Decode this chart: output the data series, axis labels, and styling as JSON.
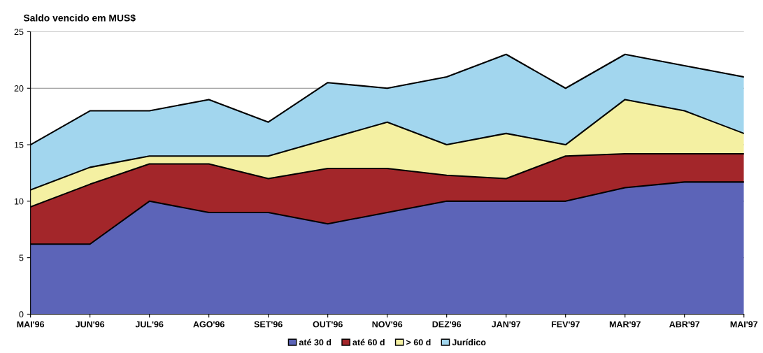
{
  "chart_data": {
    "type": "area",
    "stacked": true,
    "ylabel": "Saldo vencido em MUS$",
    "categories": [
      "MAI'96",
      "JUN'96",
      "JUL'96",
      "AGO'96",
      "SET'96",
      "OUT'96",
      "NOV'96",
      "DEZ'96",
      "JAN'97",
      "FEV'97",
      "MAR'97",
      "ABR'97",
      "MAI'97"
    ],
    "series": [
      {
        "name": "até 30 d",
        "color": "#5c64b8",
        "values": [
          6.2,
          6.2,
          10,
          9,
          9,
          8,
          9,
          10,
          10,
          10,
          11.2,
          11.7,
          11.7
        ]
      },
      {
        "name": "até 60 d",
        "color": "#a3262a",
        "values": [
          3.3,
          5.3,
          3.3,
          4.3,
          3,
          4.9,
          3.9,
          2.3,
          2,
          4,
          3,
          2.5,
          2.5
        ]
      },
      {
        "name": "> 60 d",
        "color": "#f4f0a2",
        "values": [
          1.5,
          1.5,
          0.7,
          0.7,
          2,
          2.6,
          4.1,
          2.7,
          4,
          1,
          4.8,
          3.8,
          1.8
        ]
      },
      {
        "name": "Jurídico",
        "color": "#a2d6ee",
        "values": [
          4,
          5,
          4,
          5,
          3,
          5,
          3,
          6,
          7,
          5,
          4,
          4,
          5
        ]
      }
    ],
    "ylim": [
      0,
      25
    ],
    "yticks": [
      0,
      5,
      10,
      15,
      20,
      25
    ],
    "grid": "y",
    "legend": "bottom"
  }
}
